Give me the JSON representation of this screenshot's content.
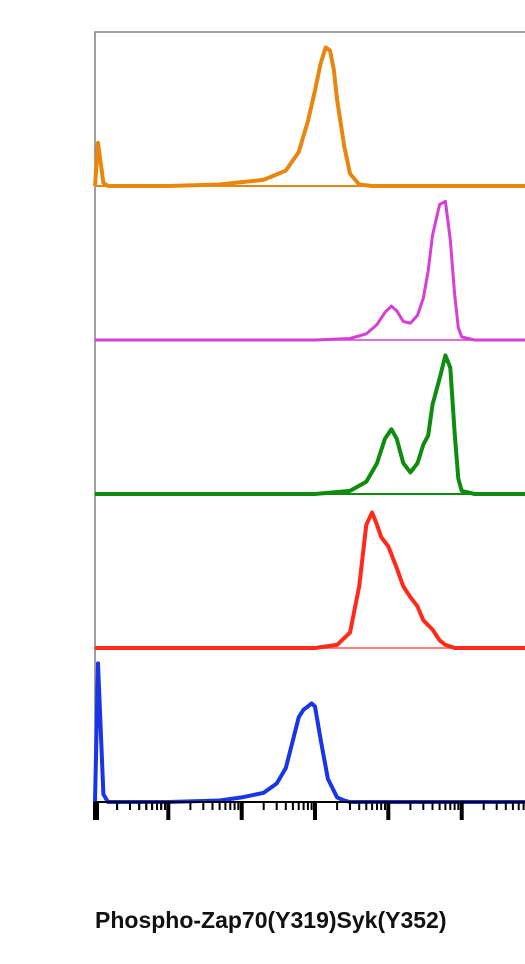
{
  "chart_data": {
    "type": "area",
    "title": "",
    "xlabel": "Phospho-Zap70(Y319)Syk(Y352)",
    "ylabel": "",
    "x_scale": "log",
    "xlim": [
      0.1,
      100000
    ],
    "grid": false,
    "legend": "none",
    "series": [
      {
        "color": "#e8860e",
        "stroke": "bold",
        "x": [
          0.1,
          0.11,
          0.13,
          0.15,
          1,
          5,
          20,
          40,
          60,
          80,
          100,
          120,
          140,
          160,
          180,
          200,
          250,
          300,
          400,
          600,
          1000,
          10000,
          100000
        ],
        "y": [
          0.0,
          0.28,
          0.02,
          0.0,
          0.0,
          0.01,
          0.04,
          0.1,
          0.22,
          0.42,
          0.62,
          0.8,
          0.9,
          0.88,
          0.76,
          0.56,
          0.26,
          0.08,
          0.01,
          0.0,
          0.0,
          0.0,
          0.0
        ]
      },
      {
        "color": "#d63fd6",
        "stroke": "normal",
        "x": [
          0.1,
          100,
          300,
          500,
          700,
          900,
          1100,
          1300,
          1600,
          2000,
          2500,
          3000,
          3500,
          4000,
          5000,
          6000,
          7000,
          8000,
          9000,
          10000,
          15000,
          20000,
          30000,
          100000
        ],
        "y": [
          0.0,
          0.0,
          0.01,
          0.04,
          0.1,
          0.18,
          0.22,
          0.19,
          0.12,
          0.11,
          0.16,
          0.27,
          0.45,
          0.68,
          0.88,
          0.9,
          0.65,
          0.3,
          0.08,
          0.02,
          0.0,
          0.0,
          0.0,
          0.0
        ]
      },
      {
        "color": "#0e8c0e",
        "stroke": "bold",
        "x": [
          0.1,
          100,
          300,
          500,
          700,
          900,
          1100,
          1300,
          1600,
          2000,
          2500,
          3000,
          3500,
          4000,
          5000,
          6000,
          7000,
          8000,
          9000,
          10000,
          15000,
          20000,
          100000
        ],
        "y": [
          0.0,
          0.0,
          0.02,
          0.08,
          0.2,
          0.36,
          0.42,
          0.36,
          0.2,
          0.14,
          0.2,
          0.32,
          0.38,
          0.58,
          0.75,
          0.9,
          0.82,
          0.4,
          0.1,
          0.02,
          0.0,
          0.0,
          0.0
        ]
      },
      {
        "color": "#ff2a1a",
        "stroke": "bold",
        "base_color": "#ff8080",
        "x": [
          0.1,
          100,
          200,
          300,
          400,
          500,
          600,
          700,
          800,
          1000,
          1300,
          1600,
          2000,
          2500,
          3000,
          4000,
          5000,
          6000,
          7000,
          8000,
          10000,
          20000,
          100000
        ],
        "y": [
          0.0,
          0.0,
          0.02,
          0.1,
          0.4,
          0.8,
          0.88,
          0.8,
          0.72,
          0.66,
          0.52,
          0.4,
          0.33,
          0.27,
          0.18,
          0.12,
          0.05,
          0.02,
          0.01,
          0.0,
          0.0,
          0.0,
          0.0
        ]
      },
      {
        "color": "#1a35e6",
        "stroke": "bold",
        "x": [
          0.1,
          0.11,
          0.13,
          0.15,
          1,
          5,
          10,
          20,
          30,
          40,
          50,
          60,
          70,
          80,
          90,
          100,
          120,
          150,
          200,
          250,
          300,
          400,
          600,
          1000,
          100000
        ],
        "y": [
          0.0,
          0.9,
          0.05,
          0.0,
          0.0,
          0.01,
          0.03,
          0.06,
          0.12,
          0.22,
          0.4,
          0.55,
          0.6,
          0.62,
          0.64,
          0.62,
          0.4,
          0.15,
          0.03,
          0.01,
          0.0,
          0.0,
          0.0,
          0.0,
          0.0
        ]
      }
    ]
  }
}
